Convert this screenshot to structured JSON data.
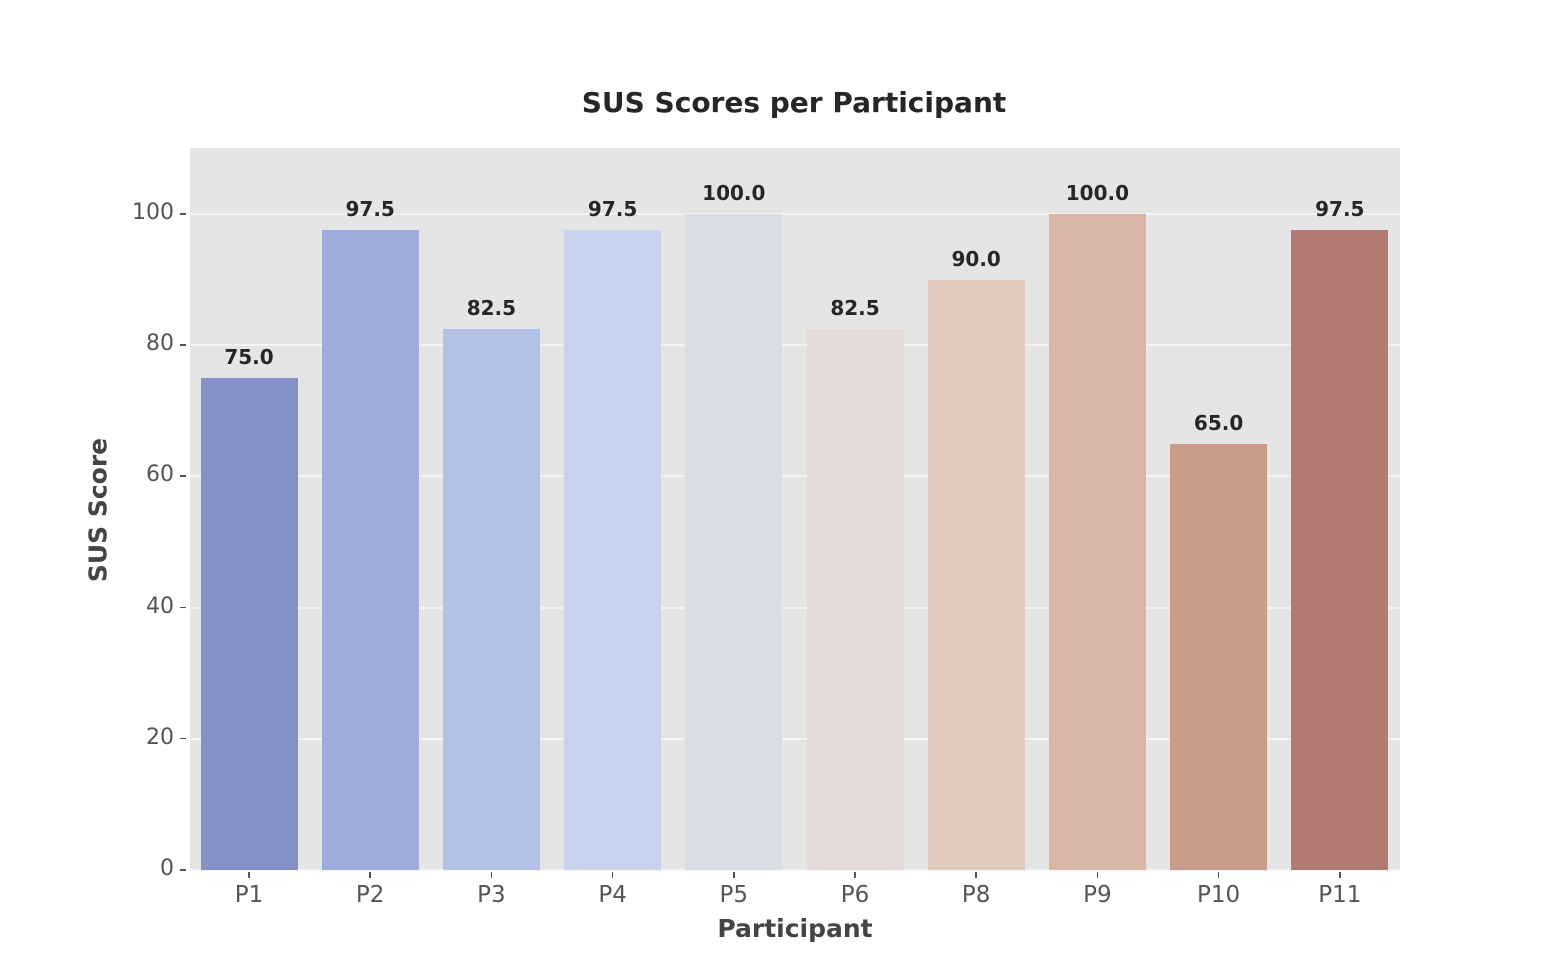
{
  "chart_data": {
    "type": "bar",
    "title": "SUS Scores per Participant",
    "xlabel": "Participant",
    "ylabel": "SUS Score",
    "categories": [
      "P1",
      "P2",
      "P3",
      "P4",
      "P5",
      "P6",
      "P8",
      "P9",
      "P10",
      "P11"
    ],
    "values": [
      75.0,
      97.5,
      82.5,
      97.5,
      100.0,
      82.5,
      90.0,
      100.0,
      65.0,
      97.5
    ],
    "value_labels": [
      "75.0",
      "97.5",
      "82.5",
      "97.5",
      "100.0",
      "82.5",
      "90.0",
      "100.0",
      "65.0",
      "97.5"
    ],
    "colors": [
      "#8490c8",
      "#9eabdc",
      "#b3c0e8",
      "#c8d2ec",
      "#d9dee6",
      "#e4dad7",
      "#e1cbbc",
      "#d8b5a4",
      "#c99b89",
      "#b37b72"
    ],
    "ylim": [
      0,
      110
    ],
    "yticks": [
      0,
      20,
      40,
      60,
      80,
      100
    ],
    "grid": true,
    "background": "#e5e5e5",
    "legend": null
  }
}
